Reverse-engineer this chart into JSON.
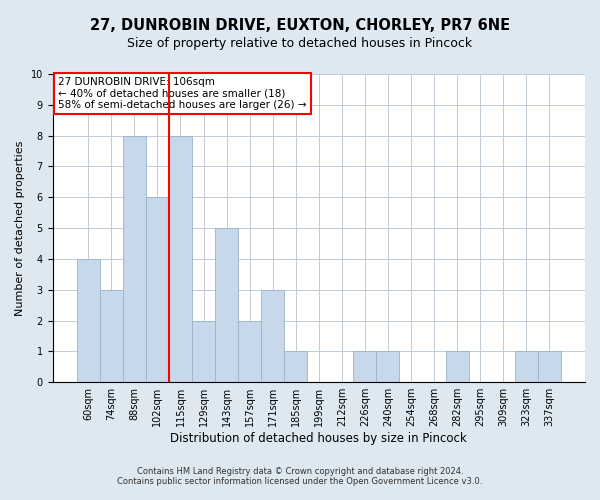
{
  "title1": "27, DUNROBIN DRIVE, EUXTON, CHORLEY, PR7 6NE",
  "title2": "Size of property relative to detached houses in Pincock",
  "xlabel": "Distribution of detached houses by size in Pincock",
  "ylabel": "Number of detached properties",
  "categories": [
    "60sqm",
    "74sqm",
    "88sqm",
    "102sqm",
    "115sqm",
    "129sqm",
    "143sqm",
    "157sqm",
    "171sqm",
    "185sqm",
    "199sqm",
    "212sqm",
    "226sqm",
    "240sqm",
    "254sqm",
    "268sqm",
    "282sqm",
    "295sqm",
    "309sqm",
    "323sqm",
    "337sqm"
  ],
  "values": [
    4,
    3,
    8,
    6,
    8,
    2,
    5,
    2,
    3,
    1,
    0,
    0,
    1,
    1,
    0,
    0,
    1,
    0,
    0,
    1,
    1
  ],
  "bar_color": "#c8d8eb",
  "bar_edgecolor": "#9ab4cc",
  "property_line_x": 3.5,
  "property_line_label": "27 DUNROBIN DRIVE: 106sqm",
  "annotation_line1": "← 40% of detached houses are smaller (18)",
  "annotation_line2": "58% of semi-detached houses are larger (26) →",
  "ylim": [
    0,
    10
  ],
  "yticks": [
    0,
    1,
    2,
    3,
    4,
    5,
    6,
    7,
    8,
    9,
    10
  ],
  "footnote1": "Contains HM Land Registry data © Crown copyright and database right 2024.",
  "footnote2": "Contains public sector information licensed under the Open Government Licence v3.0.",
  "fig_background": "#dde8f0",
  "plot_background": "#ffffff",
  "grid_color": "#c0ccd8",
  "title1_fontsize": 10.5,
  "title2_fontsize": 9,
  "ylabel_fontsize": 8,
  "xlabel_fontsize": 8.5,
  "tick_fontsize": 7,
  "annot_fontsize": 7.5,
  "footnote_fontsize": 6
}
